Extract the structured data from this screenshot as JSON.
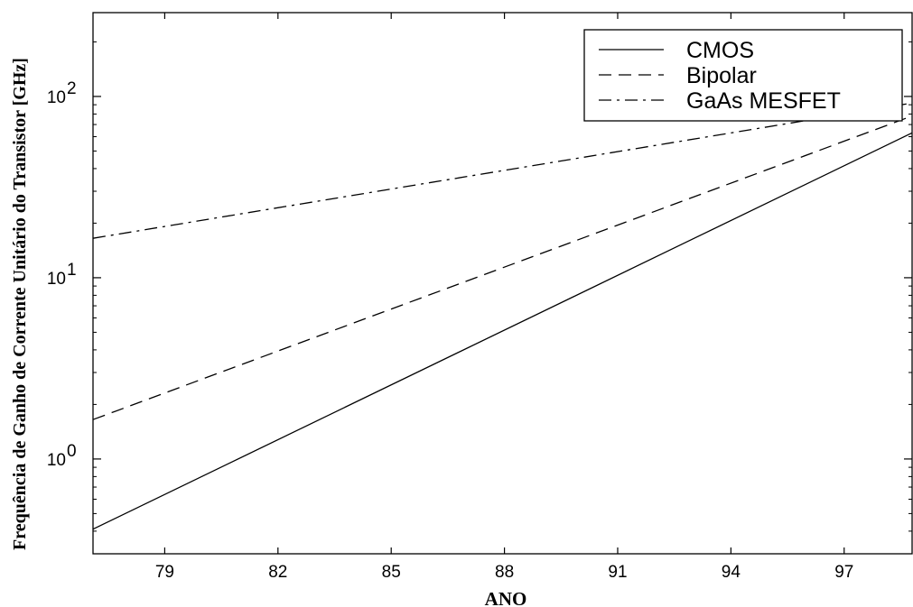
{
  "chart_data": {
    "type": "line",
    "title": "",
    "xlabel": "ANO",
    "ylabel": "Frequência de Ganho de Corrente Unitário  do Transistor [GHz]",
    "yscale": "log",
    "xlim": [
      77.1,
      98.8
    ],
    "ylim": [
      0.3,
      290
    ],
    "x_ticks": [
      79,
      82,
      85,
      88,
      91,
      94,
      97
    ],
    "x_tick_labels": [
      "79",
      "82",
      "85",
      "88",
      "91",
      "94",
      "97"
    ],
    "y_ticks": [
      1,
      10,
      100
    ],
    "y_tick_labels": [
      {
        "base": "10",
        "exp": "0"
      },
      {
        "base": "10",
        "exp": "1"
      },
      {
        "base": "10",
        "exp": "2"
      }
    ],
    "grid": false,
    "legend_position": "top-right",
    "series": [
      {
        "name": "CMOS",
        "style": "solid",
        "color": "#000000",
        "x": [
          77.1,
          98.8
        ],
        "y": [
          0.41,
          63
        ]
      },
      {
        "name": "Bipolar",
        "style": "dashed",
        "color": "#000000",
        "x": [
          77.1,
          98.8
        ],
        "y": [
          1.65,
          78
        ]
      },
      {
        "name": "GaAs MESFET",
        "style": "dashdot",
        "color": "#000000",
        "x": [
          77.1,
          98.8
        ],
        "y": [
          16.5,
          92
        ]
      }
    ]
  }
}
